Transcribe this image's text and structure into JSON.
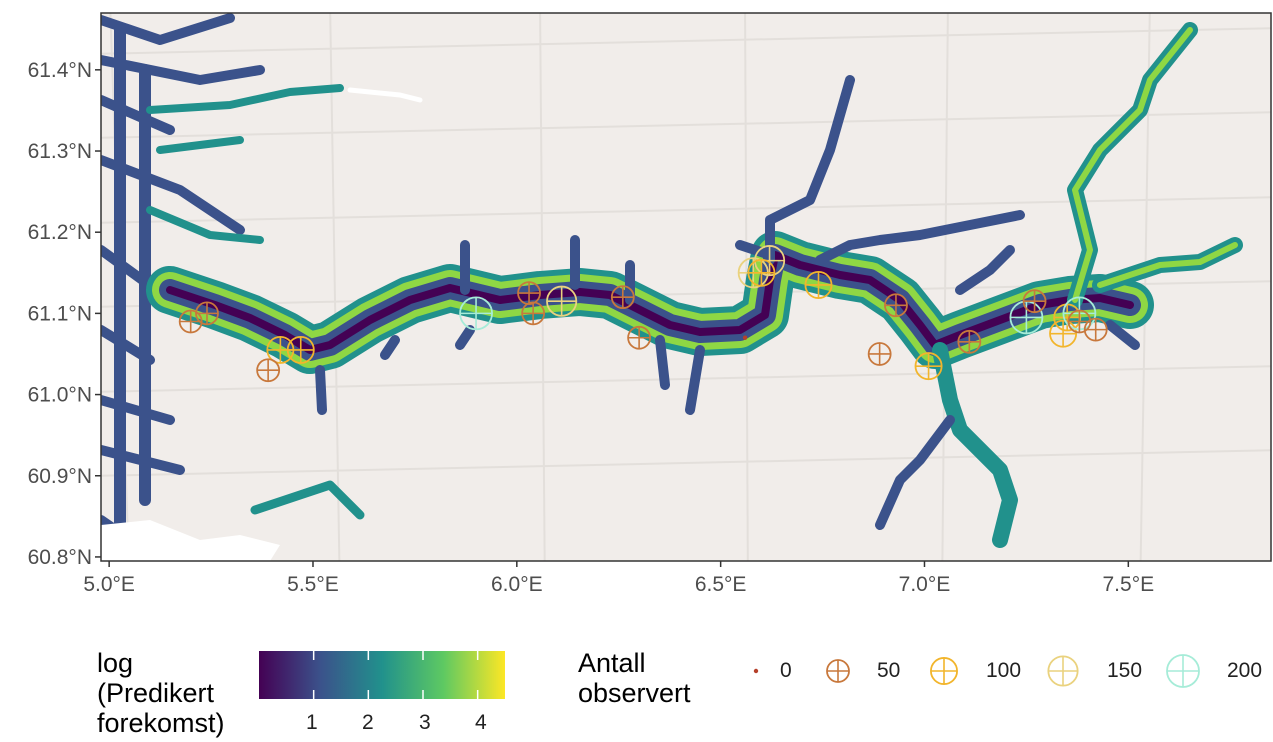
{
  "map": {
    "x_axis_labels": [
      "5.0°E",
      "5.5°E",
      "6.0°E",
      "6.5°E",
      "7.0°E",
      "7.5°E"
    ],
    "y_axis_labels": [
      "60.8°N",
      "60.9°N",
      "61.0°N",
      "61.1°N",
      "61.2°N",
      "61.3°N",
      "61.4°N"
    ],
    "lon_ticks": [
      5.0,
      5.5,
      6.0,
      6.5,
      7.0,
      7.5
    ],
    "lat_ticks": [
      60.8,
      60.9,
      61.0,
      61.1,
      61.2,
      61.3,
      61.4
    ],
    "lon_range": [
      4.98,
      7.85
    ],
    "lat_range": [
      60.795,
      61.47
    ],
    "background_color": "#f1edea",
    "grid_color": "#e3dfdb",
    "land_label": "",
    "observations": [
      {
        "lon": 5.2,
        "lat": 61.09,
        "count": 50
      },
      {
        "lon": 5.24,
        "lat": 61.1,
        "count": 50
      },
      {
        "lon": 5.42,
        "lat": 61.055,
        "count": 100
      },
      {
        "lon": 5.47,
        "lat": 61.055,
        "count": 100
      },
      {
        "lon": 5.39,
        "lat": 61.03,
        "count": 50
      },
      {
        "lon": 5.9,
        "lat": 61.1,
        "count": 200
      },
      {
        "lon": 6.03,
        "lat": 61.125,
        "count": 50
      },
      {
        "lon": 6.04,
        "lat": 61.1,
        "count": 50
      },
      {
        "lon": 6.11,
        "lat": 61.115,
        "count": 150
      },
      {
        "lon": 6.26,
        "lat": 61.12,
        "count": 50
      },
      {
        "lon": 6.3,
        "lat": 61.07,
        "count": 50
      },
      {
        "lon": 6.56,
        "lat": 61.07,
        "count": 0
      },
      {
        "lon": 6.58,
        "lat": 61.15,
        "count": 150
      },
      {
        "lon": 6.62,
        "lat": 61.165,
        "count": 150
      },
      {
        "lon": 6.6,
        "lat": 61.15,
        "count": 100
      },
      {
        "lon": 6.74,
        "lat": 61.135,
        "count": 100
      },
      {
        "lon": 6.89,
        "lat": 61.05,
        "count": 50
      },
      {
        "lon": 6.93,
        "lat": 61.11,
        "count": 50
      },
      {
        "lon": 7.01,
        "lat": 61.035,
        "count": 100
      },
      {
        "lon": 7.11,
        "lat": 61.065,
        "count": 50
      },
      {
        "lon": 7.25,
        "lat": 61.095,
        "count": 200
      },
      {
        "lon": 7.27,
        "lat": 61.115,
        "count": 50
      },
      {
        "lon": 7.34,
        "lat": 61.075,
        "count": 100
      },
      {
        "lon": 7.35,
        "lat": 61.095,
        "count": 100
      },
      {
        "lon": 7.38,
        "lat": 61.1,
        "count": 200
      },
      {
        "lon": 7.38,
        "lat": 61.09,
        "count": 50
      },
      {
        "lon": 7.42,
        "lat": 61.08,
        "count": 50
      }
    ]
  },
  "legend_color": {
    "title_line1": "log",
    "title_line2": "(Predikert",
    "title_line3": "forekomst)",
    "tick_labels": [
      "1",
      "2",
      "3",
      "4"
    ],
    "tick_values": [
      1,
      2,
      3,
      4
    ],
    "range": [
      0,
      4.5
    ],
    "colors": [
      "#440154",
      "#3b528b",
      "#21918c",
      "#5ec962",
      "#fde725"
    ]
  },
  "legend_size": {
    "title_line1": "Antall",
    "title_line2": "observert",
    "entries": [
      {
        "label": "0",
        "count": 0,
        "color": "#b5402a"
      },
      {
        "label": "50",
        "count": 50,
        "color": "#c8783c"
      },
      {
        "label": "100",
        "count": 100,
        "color": "#f2b52c"
      },
      {
        "label": "150",
        "count": 150,
        "color": "#ead27e"
      },
      {
        "label": "200",
        "count": 200,
        "color": "#a6ecd8"
      }
    ]
  }
}
